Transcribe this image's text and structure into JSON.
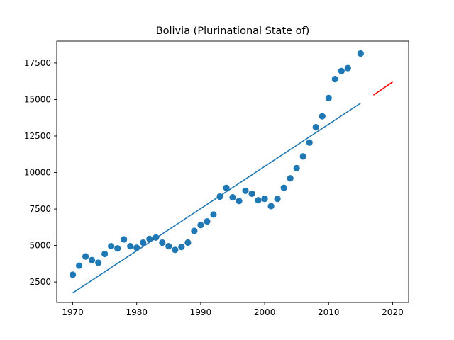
{
  "chart_data": {
    "type": "scatter",
    "title": "Bolivia (Plurinational State of)",
    "xlabel": "",
    "ylabel": "",
    "xlim": [
      1967.5,
      2022.5
    ],
    "ylim": [
      1100,
      19000
    ],
    "xticks": [
      1970,
      1980,
      1990,
      2000,
      2010,
      2020
    ],
    "yticks": [
      2500,
      5000,
      7500,
      10000,
      12500,
      15000,
      17500
    ],
    "grid": false,
    "colors": {
      "points": "#1f77b4",
      "fit": "#1f77b4",
      "forecast": "#ff0000"
    },
    "series": [
      {
        "mark": "scatter",
        "points": [
          [
            1970,
            3000
          ],
          [
            1971,
            3620
          ],
          [
            1972,
            4250
          ],
          [
            1973,
            4000
          ],
          [
            1974,
            3820
          ],
          [
            1975,
            4420
          ],
          [
            1976,
            4950
          ],
          [
            1977,
            4800
          ],
          [
            1978,
            5420
          ],
          [
            1979,
            4950
          ],
          [
            1980,
            4850
          ],
          [
            1981,
            5200
          ],
          [
            1982,
            5450
          ],
          [
            1983,
            5550
          ],
          [
            1984,
            5200
          ],
          [
            1985,
            4950
          ],
          [
            1986,
            4700
          ],
          [
            1987,
            4900
          ],
          [
            1988,
            5200
          ],
          [
            1989,
            6000
          ],
          [
            1990,
            6400
          ],
          [
            1991,
            6650
          ],
          [
            1992,
            7120
          ],
          [
            1993,
            8350
          ],
          [
            1994,
            8950
          ],
          [
            1995,
            8300
          ],
          [
            1996,
            8050
          ],
          [
            1997,
            8750
          ],
          [
            1998,
            8550
          ],
          [
            1999,
            8100
          ],
          [
            2000,
            8200
          ],
          [
            2001,
            7700
          ],
          [
            2002,
            8200
          ],
          [
            2003,
            8950
          ],
          [
            2004,
            9600
          ],
          [
            2005,
            10300
          ],
          [
            2006,
            11100
          ],
          [
            2007,
            12050
          ],
          [
            2008,
            13100
          ],
          [
            2009,
            13850
          ],
          [
            2010,
            15100
          ],
          [
            2011,
            16400
          ],
          [
            2012,
            16950
          ],
          [
            2013,
            17150
          ],
          [
            2015,
            18150
          ]
        ]
      },
      {
        "mark": "line",
        "points": [
          [
            1970,
            1750
          ],
          [
            2015,
            14750
          ]
        ]
      },
      {
        "mark": "line",
        "points": [
          [
            2017,
            15300
          ],
          [
            2020,
            16200
          ]
        ]
      }
    ]
  }
}
